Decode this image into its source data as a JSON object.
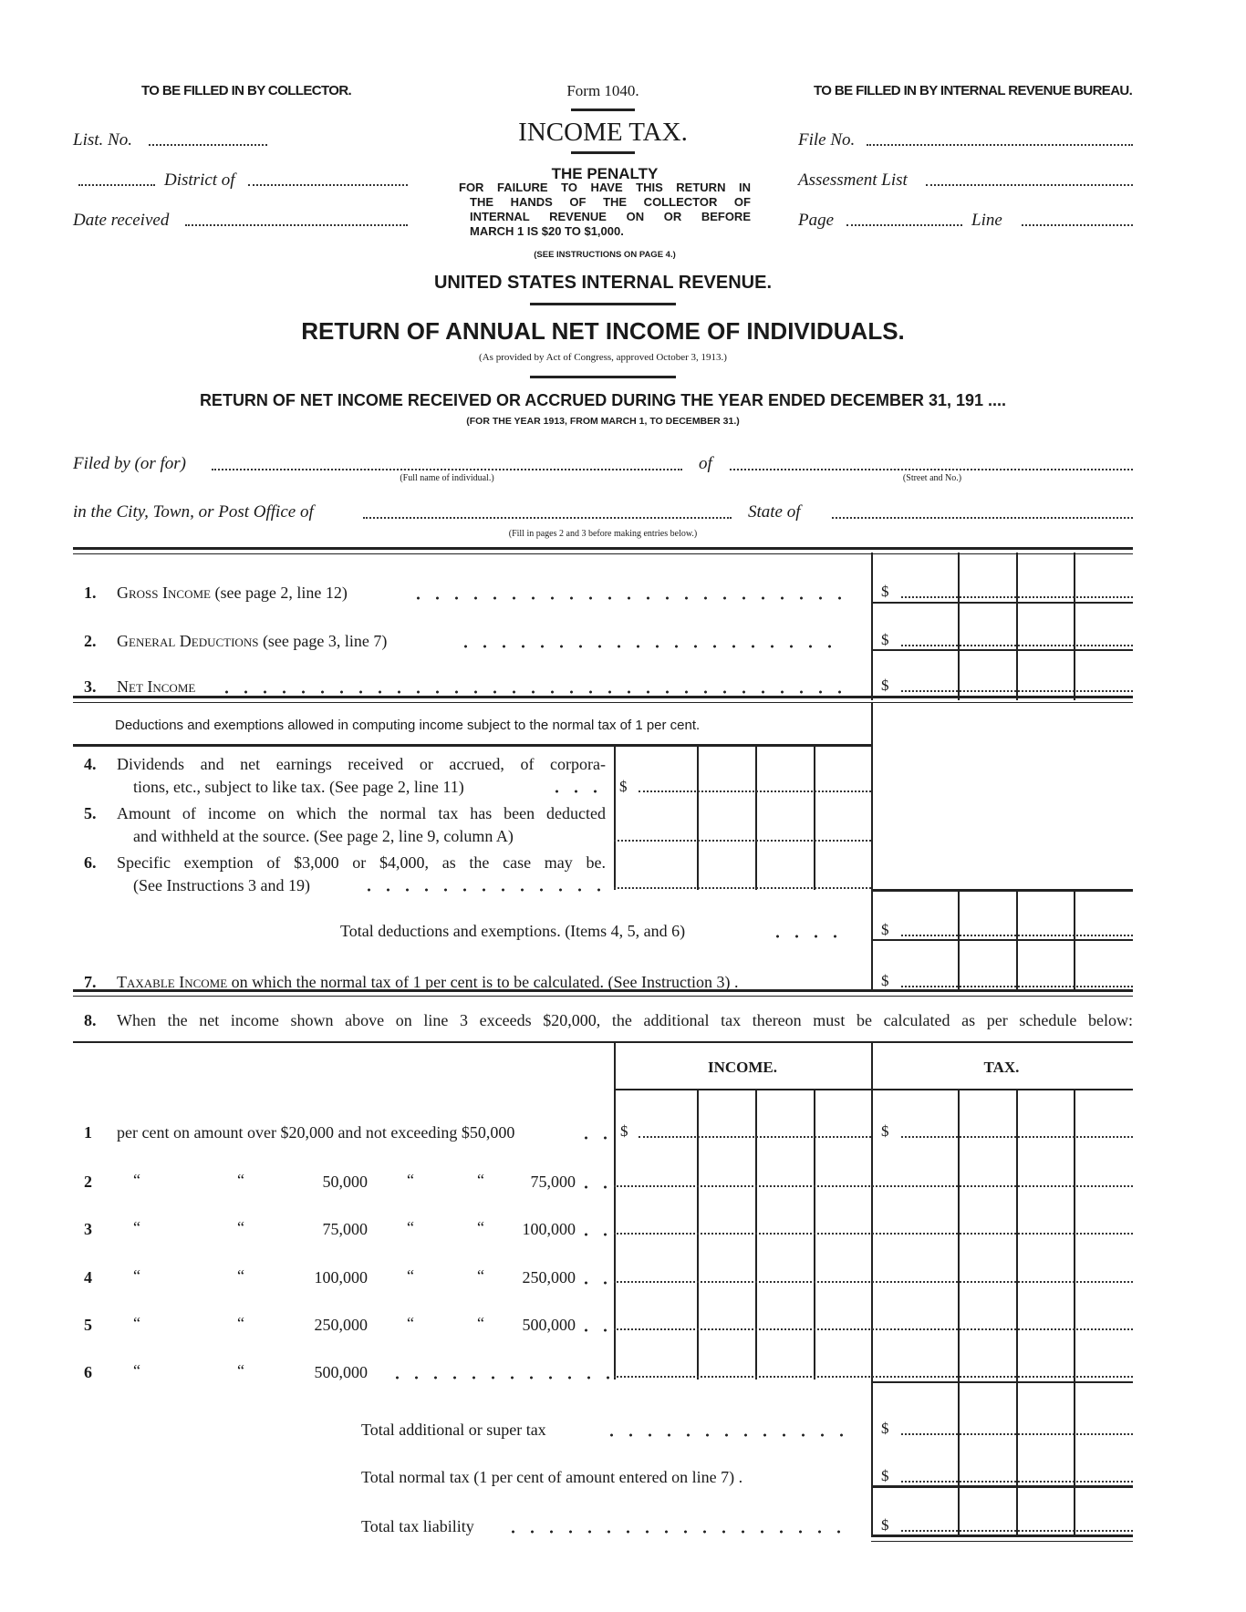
{
  "header": {
    "collector_label": "TO BE FILLED IN BY COLLECTOR.",
    "form_number": "Form 1040.",
    "form_title": "INCOME TAX.",
    "bureau_label": "TO BE FILLED IN BY INTERNAL REVENUE BUREAU."
  },
  "collector_fields": {
    "list_no": "List. No.",
    "district_of": "District of",
    "date_received": "Date received"
  },
  "bureau_fields": {
    "file_no": "File No.",
    "assessment_list": "Assessment List",
    "page": "Page",
    "line": "Line"
  },
  "penalty": {
    "title": "THE PENALTY",
    "lines": [
      "FOR FAILURE TO HAVE THIS RETURN IN",
      "THE HANDS OF THE COLLECTOR OF",
      "INTERNAL REVENUE ON OR BEFORE",
      "MARCH 1 IS $20 TO $1,000."
    ],
    "note": "(SEE INSTRUCTIONS ON PAGE 4.)"
  },
  "agency": "UNITED STATES INTERNAL REVENUE.",
  "title": "RETURN OF ANNUAL NET INCOME OF INDIVIDUALS.",
  "act_note": "(As provided by Act of Congress, approved October 3, 1913.)",
  "return_period": "RETURN OF NET INCOME RECEIVED OR ACCRUED DURING THE YEAR ENDED DECEMBER 31, 191 ....",
  "year_note": "(FOR THE YEAR 1913, FROM MARCH 1, TO DECEMBER 31.)",
  "filer": {
    "filed_by": "Filed by (or for)",
    "full_name_hint": "(Full name of individual.)",
    "of": "of",
    "street_hint": "(Street and No.)",
    "city": "in the City, Town, or Post Office of",
    "state_of": "State of",
    "fill_hint": "(Fill in pages 2 and 3 before making entries below.)"
  },
  "currency_symbol": "$",
  "lines": [
    {
      "num": "1.",
      "label_sc": "Gross Income",
      "label": " (see page 2, line 12)"
    },
    {
      "num": "2.",
      "label_sc": "General Deductions",
      "label": " (see page 3, line 7)"
    },
    {
      "num": "3.",
      "label_sc": "Net Income",
      "label": ""
    }
  ],
  "deductions_heading": "Deductions and exemptions allowed in computing income subject to the normal tax of 1 per cent.",
  "items": [
    {
      "num": "4.",
      "line1": "Dividends and net earnings received or accrued, of corpora-",
      "line2": "tions, etc., subject to like tax. (See page 2, line 11)"
    },
    {
      "num": "5.",
      "line1": "Amount of income on which the normal tax has been deducted",
      "line2": "and withheld at the source. (See page 2, line 9, column A)"
    },
    {
      "num": "6.",
      "line1": "Specific exemption of $3,000 or $4,000, as the case may be.",
      "line2": "(See Instructions 3 and 19)"
    }
  ],
  "total_deductions": "Total deductions and exemptions. (Items 4, 5, and 6)",
  "line7": {
    "num": "7.",
    "label_sc": "Taxable Income",
    "label": " on which the normal tax of 1 per cent is to be calculated. (See Instruction 3) ."
  },
  "line8": {
    "num": "8.",
    "label": "When the net income shown above on line 3 exceeds $20,000, the additional tax thereon must be calculated as per schedule below:"
  },
  "schedule": {
    "income_header": "INCOME.",
    "tax_header": "TAX.",
    "row1": "per cent on amount over $20,000 and not exceeding $50,000",
    "ditto": "“",
    "rows": [
      {
        "num": "1"
      },
      {
        "num": "2",
        "from": "50,000",
        "to": "75,000"
      },
      {
        "num": "3",
        "from": "75,000",
        "to": "100,000"
      },
      {
        "num": "4",
        "from": "100,000",
        "to": "250,000"
      },
      {
        "num": "5",
        "from": "250,000",
        "to": "500,000"
      },
      {
        "num": "6",
        "from": "500,000"
      }
    ]
  },
  "totals": {
    "super_tax": "Total additional or super tax",
    "normal_tax": "Total normal tax (1 per cent of amount entered on line 7) .",
    "liability": "Total tax liability"
  }
}
